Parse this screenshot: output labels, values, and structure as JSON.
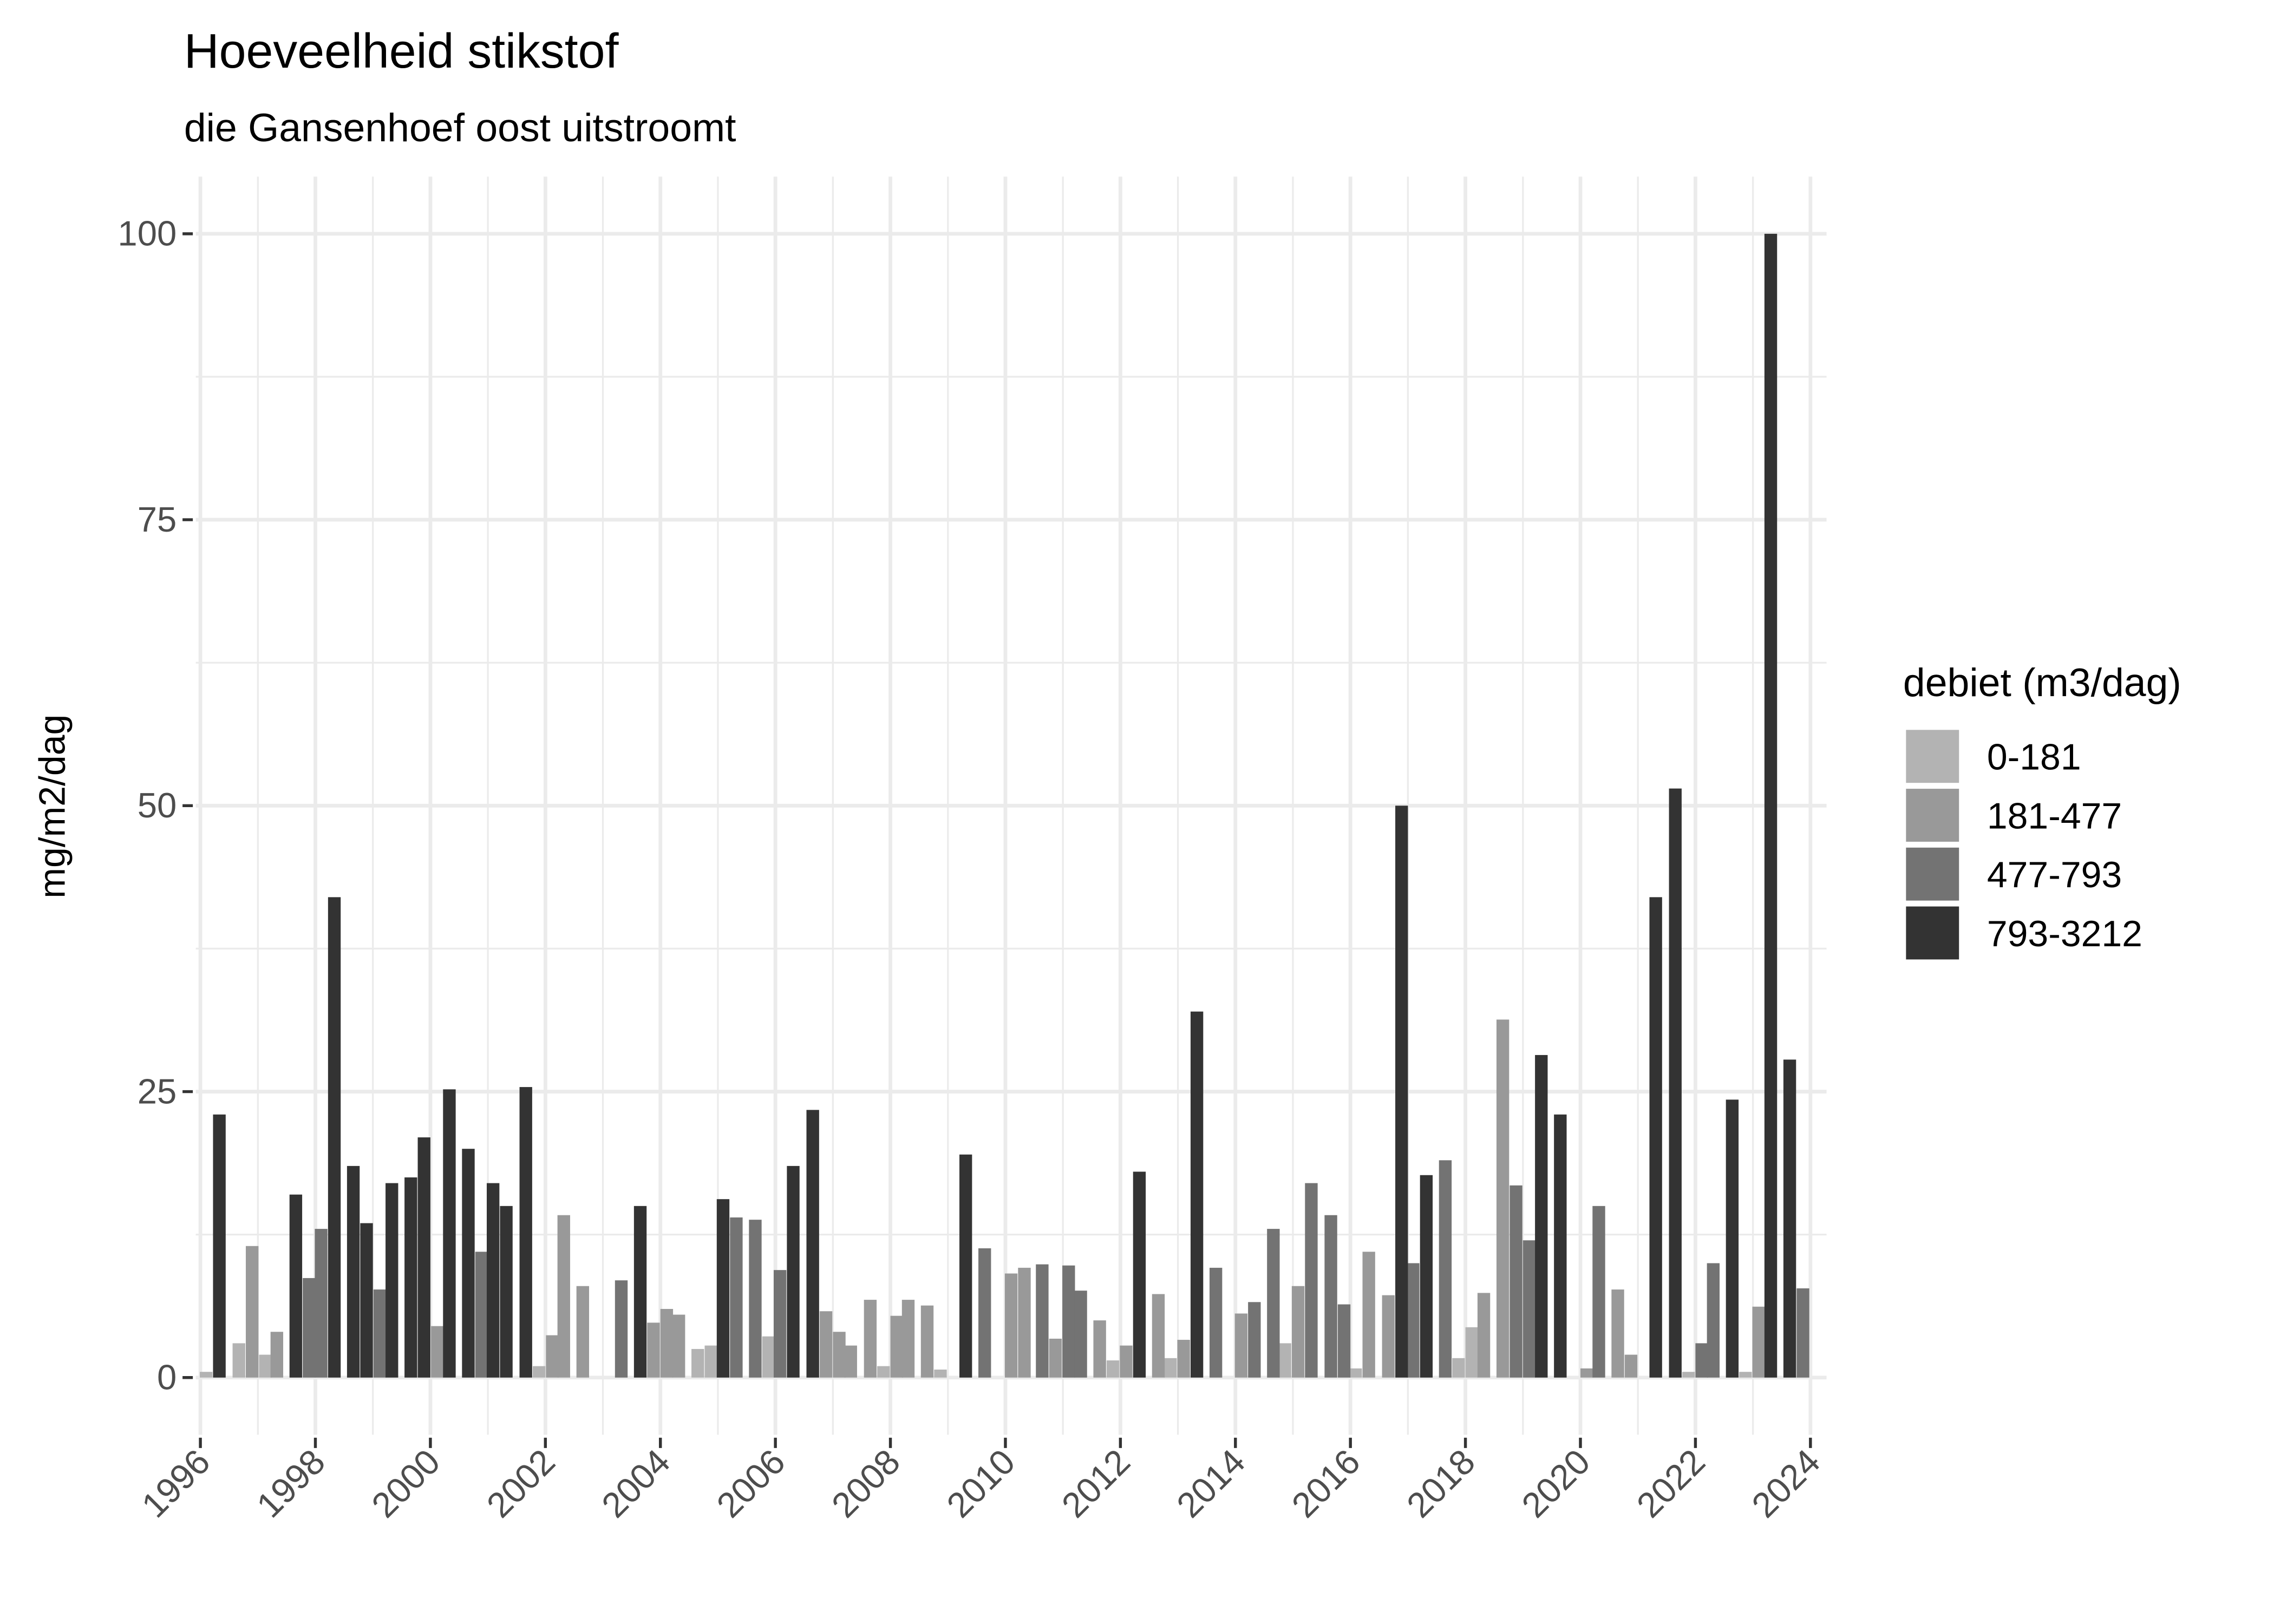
{
  "chart_data": {
    "type": "bar",
    "title": "Hoeveelheid stikstof",
    "subtitle": "die Gansenhoef oost uitstroomt",
    "y_label": "mg/m2/dag",
    "legend_title": "debiet (m3/dag)",
    "legend": "right",
    "grid": true,
    "xlim": [
      1995.92,
      2024.28
    ],
    "ylim": [
      -5,
      105
    ],
    "xticks": [
      1996,
      1998,
      2000,
      2002,
      2004,
      2006,
      2008,
      2010,
      2012,
      2014,
      2016,
      2018,
      2020,
      2022,
      2024
    ],
    "yticks": [
      0,
      25,
      50,
      75,
      100
    ],
    "series": [
      {
        "name": "0-181",
        "color": "#b3b3b3",
        "x": [
          1996.1,
          1996.67,
          1997.13,
          2001.89,
          2004.65,
          2004.88,
          2005.88,
          2007.88,
          2008.87,
          2011.87,
          2012.87,
          2014.86,
          2016.09,
          2017.88,
          2018.11,
          2021.88,
          2022.87
        ],
        "values": [
          0.5,
          3,
          2,
          1,
          2.5,
          2.8,
          3.6,
          1,
          0.7,
          1.5,
          1.7,
          3,
          0.8,
          1.7,
          4.4,
          0.5,
          0.5
        ]
      },
      {
        "name": "181-477",
        "color": "#999999",
        "x": [
          1996.9,
          1997.33,
          2000.12,
          2002.12,
          2002.32,
          2002.65,
          2003.88,
          2004.11,
          2004.32,
          2006.88,
          2007.11,
          2007.31,
          2007.65,
          2008.11,
          2008.31,
          2008.64,
          2010.1,
          2010.33,
          2010.87,
          2011.64,
          2012.1,
          2012.66,
          2013.1,
          2014.1,
          2015.09,
          2016.32,
          2016.66,
          2018.32,
          2018.65,
          2020.11,
          2020.65,
          2020.88,
          2023.1
        ],
        "values": [
          11.5,
          4,
          4.5,
          3.7,
          14.2,
          8,
          4.8,
          6,
          5.5,
          5.8,
          4,
          2.8,
          6.8,
          5.4,
          6.8,
          6.3,
          9.1,
          9.6,
          3.4,
          5,
          2.8,
          7.3,
          3.3,
          5.6,
          8,
          11,
          7.2,
          7.4,
          31.3,
          0.8,
          7.7,
          2,
          6.2
        ]
      },
      {
        "name": "477-793",
        "color": "#737373",
        "x": [
          1997.89,
          1998.1,
          1999.12,
          2000.89,
          2003.32,
          2005.32,
          2005.65,
          2006.08,
          2009.64,
          2010.64,
          2011.1,
          2011.31,
          2013.66,
          2014.33,
          2014.66,
          2015.32,
          2015.66,
          2015.89,
          2017.09,
          2017.65,
          2018.88,
          2019.11,
          2020.32,
          2022.11,
          2022.31,
          2023.87
        ],
        "values": [
          8.7,
          13,
          7.7,
          11,
          8.5,
          14,
          13.8,
          9.4,
          11.3,
          9.9,
          9.8,
          7.6,
          9.6,
          6.6,
          13,
          17,
          14.2,
          6.4,
          10,
          19,
          16.8,
          12,
          15,
          3,
          10,
          7.8
        ]
      },
      {
        "name": "793-3212",
        "color": "#333333",
        "x": [
          1996.33,
          1997.66,
          1998.33,
          1998.66,
          1998.89,
          1999.33,
          1999.66,
          1999.89,
          2000.33,
          2000.66,
          2001.09,
          2001.32,
          2001.66,
          2003.65,
          2005.09,
          2006.31,
          2006.65,
          2009.31,
          2012.33,
          2013.33,
          2016.89,
          2017.32,
          2019.32,
          2019.65,
          2021.31,
          2021.65,
          2022.64,
          2023.31,
          2023.64
        ],
        "values": [
          23,
          16,
          42,
          18.5,
          13.5,
          17,
          17.5,
          21,
          25.2,
          20,
          17,
          15,
          25.4,
          15,
          15.6,
          18.5,
          23.4,
          19.5,
          18,
          32,
          50,
          17.7,
          28.2,
          23,
          42,
          51.5,
          24.3,
          100,
          27.8
        ]
      }
    ]
  }
}
